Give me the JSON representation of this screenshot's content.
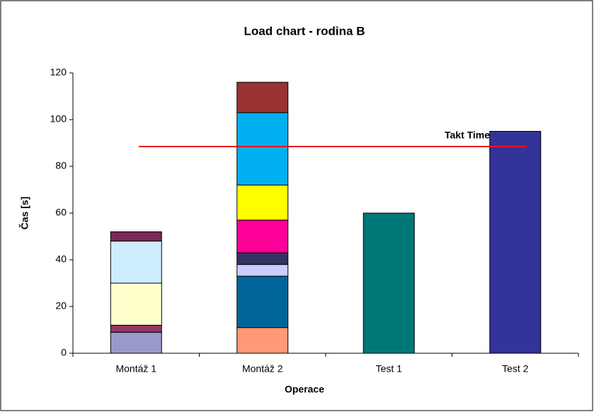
{
  "chart_data": {
    "type": "stacked_bar",
    "title": "Load chart - rodina B",
    "x_label": "Operace",
    "y_label": "Čas [s]",
    "categories": [
      "Montáž 1",
      "Montáž 2",
      "Test 1",
      "Test 2"
    ],
    "series": [
      {
        "color": "#9999cc",
        "values": [
          9,
          null,
          null,
          null
        ]
      },
      {
        "color": "#993366",
        "values": [
          3,
          null,
          null,
          null
        ]
      },
      {
        "color": "#ffffcc",
        "values": [
          18,
          null,
          null,
          null
        ]
      },
      {
        "color": "#cceeff",
        "values": [
          18,
          null,
          null,
          null
        ]
      },
      {
        "color": "#7a2a55",
        "values": [
          4,
          null,
          null,
          null
        ]
      },
      {
        "color": "#ff9977",
        "values": [
          null,
          11,
          null,
          null
        ]
      },
      {
        "color": "#006699",
        "values": [
          null,
          22,
          null,
          null
        ]
      },
      {
        "color": "#ccccff",
        "values": [
          null,
          5,
          null,
          null
        ]
      },
      {
        "color": "#333366",
        "values": [
          null,
          5,
          null,
          null
        ]
      },
      {
        "color": "#ff0099",
        "values": [
          null,
          14,
          null,
          null
        ]
      },
      {
        "color": "#ffff00",
        "values": [
          null,
          15,
          null,
          null
        ]
      },
      {
        "color": "#00b0f0",
        "values": [
          null,
          31,
          null,
          null
        ]
      },
      {
        "color": "#993333",
        "values": [
          null,
          13,
          null,
          null
        ]
      },
      {
        "color": "#007777",
        "values": [
          null,
          null,
          60,
          null
        ]
      },
      {
        "color": "#333399",
        "values": [
          null,
          null,
          null,
          95
        ]
      }
    ],
    "takt_time": {
      "label": "Takt Time",
      "value": 88.5,
      "color": "#e8141e"
    },
    "ylim": [
      0,
      120
    ],
    "yticks": [
      0,
      20,
      40,
      60,
      80,
      100,
      120
    ],
    "grid": false
  }
}
